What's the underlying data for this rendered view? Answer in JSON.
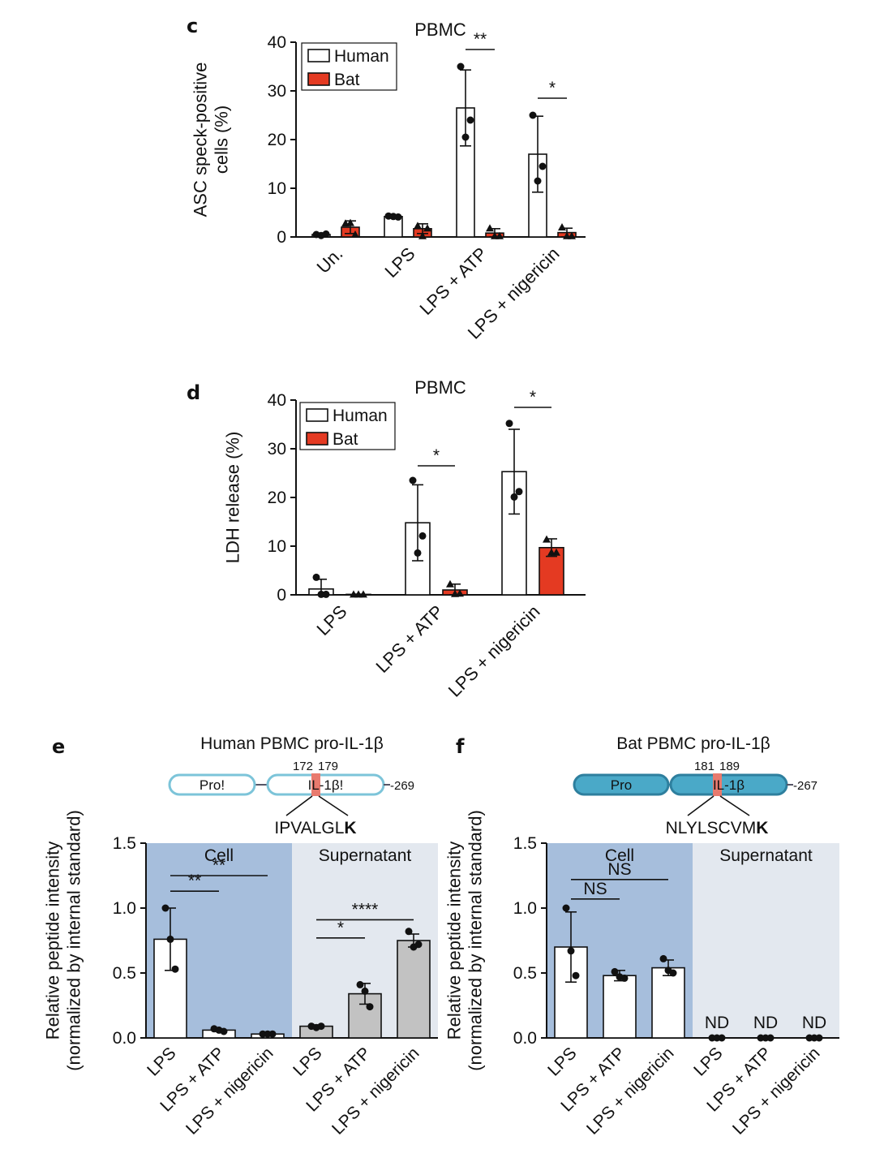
{
  "colors": {
    "human": "#ffffff",
    "bat": "#e43a22",
    "supernatant_bar": "#c2c2c2",
    "cell_bg": "#a6bedc",
    "sup_bg": "#e3e8ef",
    "domain_e": "#7cc4d9",
    "domain_f": "#4aa9c8",
    "cleavage": "#e87a6e",
    "axis": "#111111"
  },
  "chart_data": [
    {
      "panel": "c",
      "type": "bar",
      "title": "PBMC",
      "ylabel": "ASC speck-positive cells (%)",
      "ylabel_lines": [
        "ASC speck-positive",
        "cells (%)"
      ],
      "ylim": [
        0,
        40
      ],
      "yticks": [
        "0",
        "10",
        "20",
        "30",
        "40"
      ],
      "categories": [
        "Un.",
        "LPS",
        "LPS + ATP",
        "LPS + nigericin"
      ],
      "legend": [
        "Human",
        "Bat"
      ],
      "series": [
        {
          "name": "Human",
          "values": [
            0.5,
            4.2,
            26.5,
            17
          ],
          "errors": [
            0.3,
            0.2,
            7.8,
            7.8
          ],
          "points": [
            [
              0.5,
              0.3,
              0.6
            ],
            [
              4.3,
              4.2,
              4.1
            ],
            [
              35,
              20.5,
              24
            ],
            [
              25,
              11.5,
              14.5
            ]
          ]
        },
        {
          "name": "Bat",
          "values": [
            2,
            1.7,
            0.8,
            0.9
          ],
          "errors": [
            1.3,
            1.0,
            0.9,
            0.9
          ],
          "points": [
            [
              2.8,
              2.9,
              0.5
            ],
            [
              2.3,
              0.2,
              1.8
            ],
            [
              1.8,
              0.2,
              0.2
            ],
            [
              2.0,
              0.2,
              0.2
            ]
          ]
        }
      ],
      "significance": [
        {
          "label": "**",
          "category": "LPS + ATP",
          "value": 38.5
        },
        {
          "label": "*",
          "category": "LPS + nigericin",
          "value": 28.5
        }
      ]
    },
    {
      "panel": "d",
      "type": "bar",
      "title": "PBMC",
      "ylabel": "LDH release (%)",
      "ylabel_lines": [
        "LDH release (%)"
      ],
      "ylim": [
        0,
        40
      ],
      "yticks": [
        "0",
        "10",
        "20",
        "30",
        "40"
      ],
      "categories": [
        "LPS",
        "LPS + ATP",
        "LPS + nigericin"
      ],
      "legend": [
        "Human",
        "Bat"
      ],
      "series": [
        {
          "name": "Human",
          "values": [
            1.2,
            14.8,
            25.3
          ],
          "errors": [
            2.0,
            7.8,
            8.7
          ],
          "points": [
            [
              3.6,
              0.1,
              0.1
            ],
            [
              23.5,
              8.6,
              12.1
            ],
            [
              35.2,
              20.1,
              21.2
            ]
          ]
        },
        {
          "name": "Bat",
          "values": [
            0.1,
            1.0,
            9.7
          ],
          "errors": [
            0.05,
            1.2,
            1.8
          ],
          "points": [
            [
              0.1,
              0.1,
              0.1
            ],
            [
              2.2,
              0.2,
              0.3
            ],
            [
              11.4,
              8.7,
              8.7
            ]
          ]
        }
      ],
      "significance": [
        {
          "label": "*",
          "category": "LPS + ATP",
          "value": 26.5
        },
        {
          "label": "*",
          "category": "LPS + nigericin",
          "value": 38.5
        }
      ]
    },
    {
      "panel": "e",
      "type": "bar",
      "title": "Human PBMC pro-IL-1β",
      "ylabel_lines": [
        "Relative peptide intensity",
        "(normalized by internal standard)"
      ],
      "ylim": [
        0,
        1.5
      ],
      "yticks": [
        "0.0",
        "0.5",
        "1.0",
        "1.5"
      ],
      "groups": [
        "Cell",
        "Supernatant"
      ],
      "categories": [
        "LPS",
        "LPS + ATP",
        "LPS + nigericin",
        "LPS",
        "LPS + ATP",
        "LPS + nigericin"
      ],
      "values": [
        0.76,
        0.06,
        0.03,
        0.09,
        0.34,
        0.75
      ],
      "errors": [
        0.24,
        0.01,
        0.005,
        0.01,
        0.08,
        0.05
      ],
      "points": [
        [
          1.0,
          0.76,
          0.53
        ],
        [
          0.07,
          0.06,
          0.05
        ],
        [
          0.03,
          0.03,
          0.03
        ],
        [
          0.09,
          0.08,
          0.09
        ],
        [
          0.41,
          0.36,
          0.24
        ],
        [
          0.82,
          0.7,
          0.72
        ]
      ],
      "significance": [
        {
          "label": "**",
          "from": 0,
          "to": 1,
          "value": 1.13
        },
        {
          "label": "**",
          "from": 0,
          "to": 2,
          "value": 1.25
        },
        {
          "label": "*",
          "from": 3,
          "to": 4,
          "value": 0.77
        },
        {
          "label": "****",
          "from": 3,
          "to": 5,
          "value": 0.91
        }
      ],
      "protein": {
        "start": "172",
        "end": "179",
        "length": "-269",
        "domain1": "Pro!",
        "domain2": "IL-1β!",
        "peptide": "IPVALGL",
        "peptide_bold": "K"
      }
    },
    {
      "panel": "f",
      "type": "bar",
      "title": "Bat PBMC pro-IL-1β",
      "ylabel_lines": [
        "Relative peptide intensity",
        "(normalized by internal standard)"
      ],
      "ylim": [
        0,
        1.5
      ],
      "yticks": [
        "0.0",
        "0.5",
        "1.0",
        "1.5"
      ],
      "groups": [
        "Cell",
        "Supernatant"
      ],
      "categories": [
        "LPS",
        "LPS + ATP",
        "LPS + nigericin",
        "LPS",
        "LPS + ATP",
        "LPS + nigericin"
      ],
      "values": [
        0.7,
        0.48,
        0.54,
        0,
        0,
        0
      ],
      "errors": [
        0.27,
        0.04,
        0.06,
        0,
        0,
        0
      ],
      "points": [
        [
          1.0,
          0.67,
          0.48
        ],
        [
          0.51,
          0.47,
          0.46
        ],
        [
          0.61,
          0.52,
          0.5
        ],
        [
          0,
          0,
          0
        ],
        [
          0,
          0,
          0
        ],
        [
          0,
          0,
          0
        ]
      ],
      "nd_label": "ND",
      "significance": [
        {
          "label": "NS",
          "from": 0,
          "to": 1,
          "value": 1.07
        },
        {
          "label": "NS",
          "from": 0,
          "to": 2,
          "value": 1.22
        }
      ],
      "protein": {
        "start": "181",
        "end": "189",
        "length": "-267",
        "domain1": "Pro",
        "domain2": "IL-1β",
        "peptide": "NLYLSCVM",
        "peptide_bold": "K"
      }
    }
  ]
}
